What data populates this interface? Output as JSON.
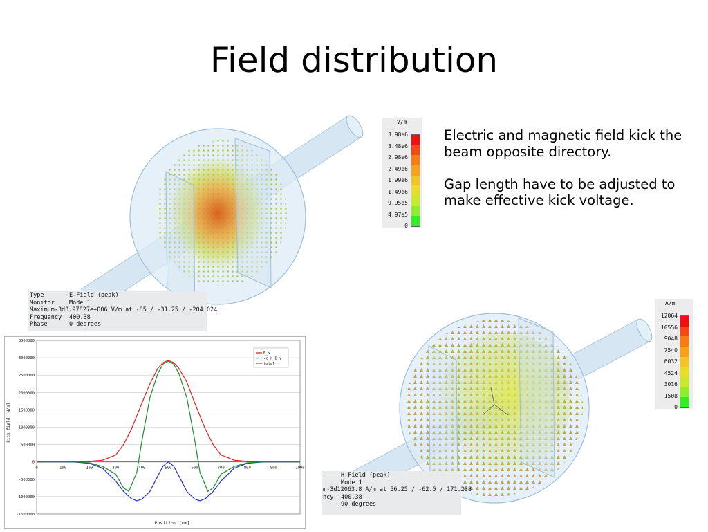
{
  "slide": {
    "title": "Field distribution",
    "paragraphs": [
      "Electric and magnetic field kick the beam opposite directory.",
      "Gap length have to be adjusted to make effective kick voltage."
    ]
  },
  "efield": {
    "unit": "V/m",
    "ticks": [
      "3.98e6",
      "3.48e6",
      "2.98e6",
      "2.49e6",
      "1.99e6",
      "1.49e6",
      "9.95e5",
      "4.97e5",
      "0"
    ],
    "colors": [
      "#ee1111",
      "#f24a10",
      "#f57d12",
      "#f7a21a",
      "#f4c427",
      "#e9dd2a",
      "#c8e92c",
      "#8fee2c",
      "#33ee22"
    ],
    "info": [
      {
        "k": "Type",
        "v": "E-Field (peak)"
      },
      {
        "k": "Monitor",
        "v": "Mode 1"
      },
      {
        "k": "Maximum-3d",
        "v": "3.97827e+006 V/m at -85 / -31.25 / -204.024"
      },
      {
        "k": "Frequency",
        "v": "400.38"
      },
      {
        "k": "Phase",
        "v": "0 degrees"
      }
    ]
  },
  "hfield": {
    "unit": "A/m",
    "ticks": [
      "12064",
      "10556",
      "9048",
      "7540",
      "6032",
      "4524",
      "3016",
      "1508",
      "0"
    ],
    "colors": [
      "#ee1111",
      "#f24a10",
      "#f57d12",
      "#f7a21a",
      "#f4c427",
      "#e9dd2a",
      "#c8e92c",
      "#8fee2c",
      "#33ee22"
    ],
    "info": [
      {
        "k": "-",
        "v": "H-Field (peak)"
      },
      {
        "k": "",
        "v": "Mode 1"
      },
      {
        "k": "m-3d",
        "v": "12063.8 A/m at 56.25 / -62.5 / 171.238"
      },
      {
        "k": "ncy",
        "v": "400.38"
      },
      {
        "k": "",
        "v": "90 degrees"
      }
    ]
  },
  "chart_data": {
    "type": "line",
    "xlabel": "Position [mm]",
    "ylabel": "kick field [N/m]",
    "xlim": [
      0,
      1000
    ],
    "ylim": [
      -1500000,
      3500000
    ],
    "xticks": [
      0,
      100,
      200,
      300,
      400,
      500,
      600,
      700,
      800,
      900,
      1000
    ],
    "yticks": [
      3500000,
      3000000,
      2500000,
      2000000,
      1500000,
      1000000,
      500000,
      0,
      -500000,
      -1000000,
      -1500000
    ],
    "grid": true,
    "legend_position": "top-right",
    "series": [
      {
        "name": "E_x",
        "color": "#e02020",
        "x": [
          0,
          100,
          150,
          200,
          250,
          300,
          330,
          360,
          400,
          430,
          460,
          480,
          500,
          520,
          540,
          570,
          600,
          640,
          670,
          700,
          750,
          800,
          850,
          900,
          1000
        ],
        "y": [
          0,
          0,
          3000,
          15000,
          50000,
          200000,
          500000,
          950000,
          1700000,
          2250000,
          2700000,
          2860000,
          2920000,
          2860000,
          2700000,
          2300000,
          1700000,
          950000,
          500000,
          200000,
          50000,
          15000,
          3000,
          0,
          0
        ]
      },
      {
        "name": "-c X B_y",
        "color": "#2030c0",
        "x": [
          0,
          100,
          150,
          200,
          250,
          300,
          330,
          360,
          380,
          400,
          430,
          460,
          480,
          500,
          520,
          540,
          570,
          600,
          620,
          640,
          670,
          700,
          750,
          800,
          850,
          900,
          1000
        ],
        "y": [
          0,
          0,
          -5000,
          -40000,
          -180000,
          -550000,
          -850000,
          -1060000,
          -1120000,
          -1070000,
          -850000,
          -400000,
          -120000,
          0,
          -120000,
          -400000,
          -850000,
          -1070000,
          -1120000,
          -1060000,
          -850000,
          -550000,
          -180000,
          -40000,
          -5000,
          0,
          0
        ]
      },
      {
        "name": "total",
        "color": "#1f8a2c",
        "x": [
          0,
          100,
          150,
          200,
          250,
          300,
          330,
          350,
          380,
          400,
          430,
          460,
          480,
          500,
          520,
          540,
          570,
          600,
          620,
          650,
          670,
          700,
          750,
          800,
          850,
          900,
          1000
        ],
        "y": [
          0,
          0,
          -2000,
          -25000,
          -130000,
          -350000,
          -750000,
          -850000,
          -300000,
          630000,
          1850000,
          2550000,
          2820000,
          2900000,
          2820000,
          2550000,
          1850000,
          630000,
          -300000,
          -850000,
          -750000,
          -350000,
          -130000,
          -25000,
          -2000,
          0,
          0
        ]
      }
    ]
  }
}
